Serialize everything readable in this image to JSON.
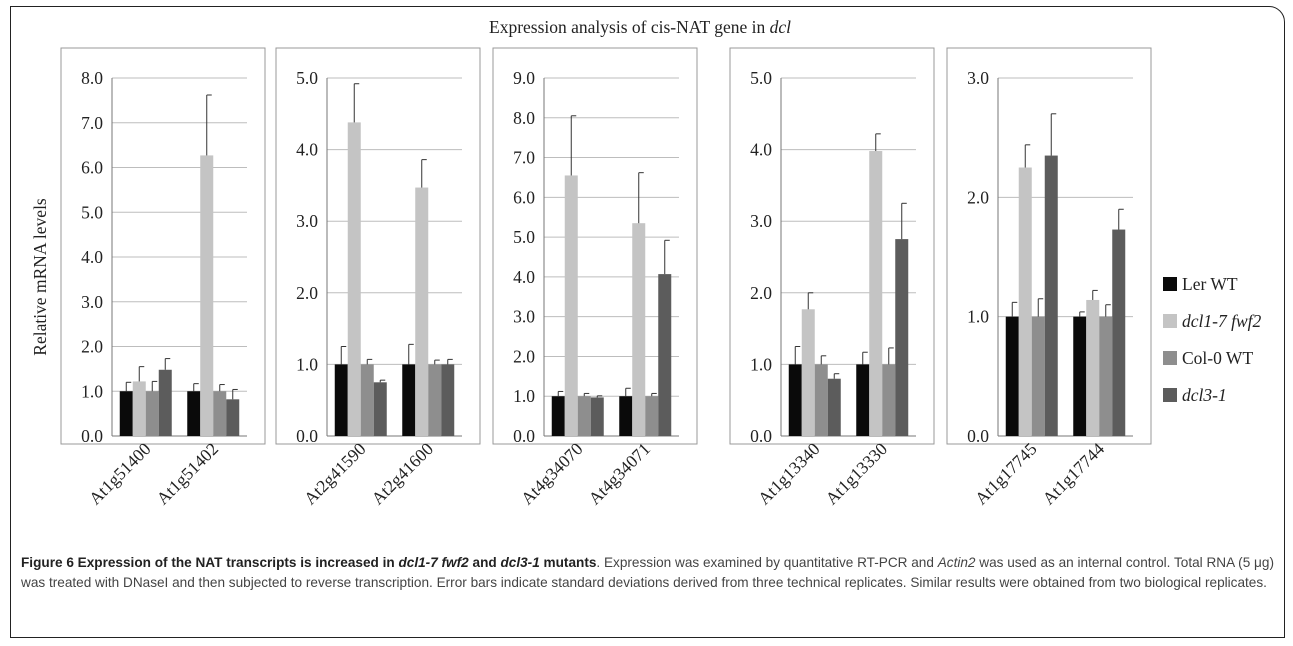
{
  "chart_data": {
    "type": "bar",
    "title": "Expression analysis of cis-NAT gene in dcl",
    "ylabel": "Relative mRNA levels",
    "legend_position": "right",
    "series": [
      {
        "name": "Ler WT",
        "color": "#0a0a0a"
      },
      {
        "name": "dcl1-7 fwf2",
        "color": "#c4c4c4"
      },
      {
        "name": "Col-0 WT",
        "color": "#8e8e8e"
      },
      {
        "name": "dcl3-1",
        "color": "#5c5c5c"
      }
    ],
    "panels": [
      {
        "ylim": [
          0,
          8
        ],
        "ticks": [
          "0.0",
          "1.0",
          "2.0",
          "3.0",
          "4.0",
          "5.0",
          "6.0",
          "7.0",
          "8.0"
        ],
        "categories": [
          "At1g51400",
          "At1g51402"
        ],
        "values": [
          [
            1.0,
            1.22,
            1.0,
            1.48
          ],
          [
            1.0,
            6.27,
            1.0,
            0.82
          ]
        ],
        "errors": [
          [
            0.2,
            0.33,
            0.22,
            0.25
          ],
          [
            0.17,
            1.35,
            0.15,
            0.22
          ]
        ]
      },
      {
        "ylim": [
          0,
          5
        ],
        "ticks": [
          "0.0",
          "1.0",
          "2.0",
          "3.0",
          "4.0",
          "5.0"
        ],
        "categories": [
          "At2g41590",
          "At2g41600"
        ],
        "values": [
          [
            1.0,
            4.38,
            1.0,
            0.75
          ],
          [
            1.0,
            3.47,
            1.0,
            1.0
          ]
        ],
        "errors": [
          [
            0.25,
            0.54,
            0.07,
            0.03
          ],
          [
            0.28,
            0.39,
            0.06,
            0.07
          ]
        ]
      },
      {
        "ylim": [
          0,
          9
        ],
        "ticks": [
          "0.0",
          "1.0",
          "2.0",
          "3.0",
          "4.0",
          "5.0",
          "6.0",
          "7.0",
          "8.0",
          "9.0"
        ],
        "categories": [
          "At4g34070",
          "At4g34071"
        ],
        "values": [
          [
            1.0,
            6.55,
            1.0,
            0.97
          ],
          [
            1.0,
            5.35,
            1.0,
            4.07
          ]
        ],
        "errors": [
          [
            0.12,
            1.5,
            0.07,
            0.04
          ],
          [
            0.2,
            1.27,
            0.07,
            0.85
          ]
        ]
      },
      {
        "ylim": [
          0,
          5
        ],
        "ticks": [
          "0.0",
          "1.0",
          "2.0",
          "3.0",
          "4.0",
          "5.0"
        ],
        "categories": [
          "At1g13340",
          "At1g13330"
        ],
        "values": [
          [
            1.0,
            1.77,
            1.0,
            0.8
          ],
          [
            1.0,
            3.98,
            1.0,
            2.75
          ]
        ],
        "errors": [
          [
            0.25,
            0.23,
            0.12,
            0.07
          ],
          [
            0.17,
            0.24,
            0.23,
            0.5
          ]
        ]
      },
      {
        "ylim": [
          0,
          3
        ],
        "ticks": [
          "0.0",
          "1.0",
          "2.0",
          "3.0"
        ],
        "categories": [
          "At1g17745",
          "At1g17744"
        ],
        "values": [
          [
            1.0,
            2.25,
            1.0,
            2.35
          ],
          [
            1.0,
            1.14,
            1.0,
            1.73
          ]
        ],
        "errors": [
          [
            0.12,
            0.19,
            0.15,
            0.35
          ],
          [
            0.04,
            0.08,
            0.1,
            0.17
          ]
        ]
      }
    ]
  },
  "caption": {
    "label": "Figure 6",
    "bold_a": "Expression of the NAT transcripts is increased in ",
    "bold_b": "dcl1-7 fwf2",
    "bold_c": " and ",
    "bold_d": "dcl3-1",
    "bold_e": " mutants",
    "text_a": ". Expression was examined by quantitative RT-PCR and ",
    "text_b": "Actin2",
    "text_c": " was used as an internal control. Total RNA (5 μg) was treated with DNaseI and then subjected to reverse transcription. Error bars indicate standard deviations derived from three technical replicates. Similar results were obtained from two biological replicates."
  }
}
